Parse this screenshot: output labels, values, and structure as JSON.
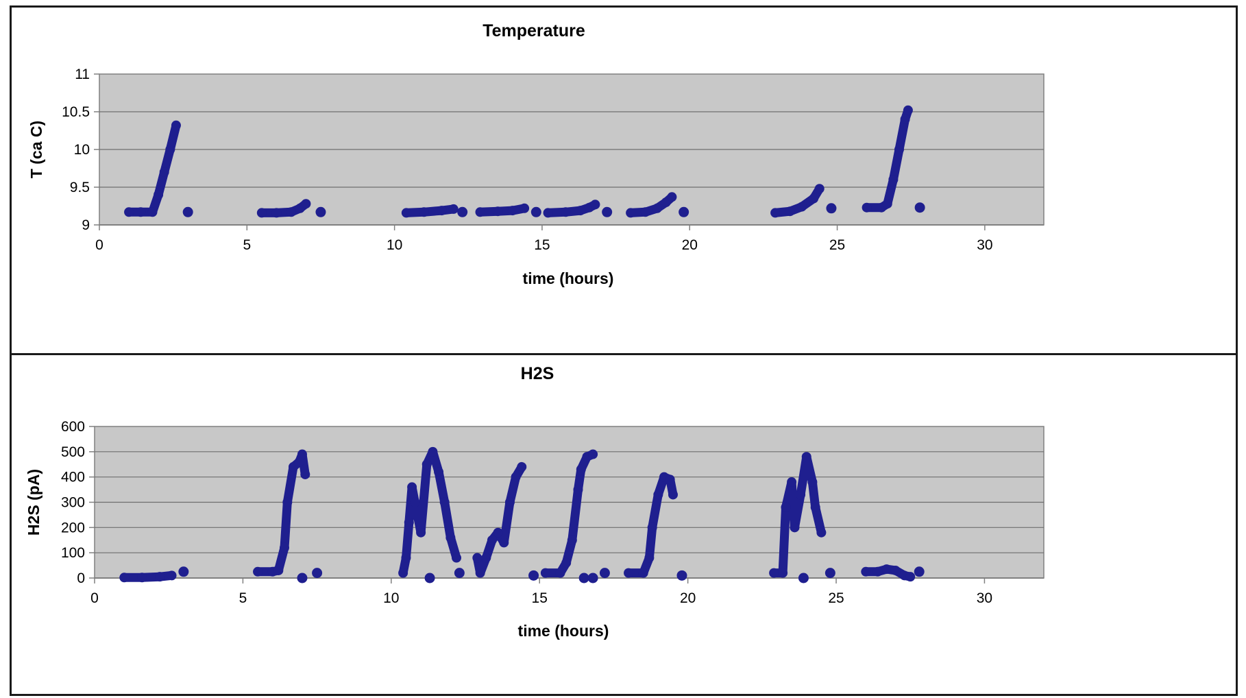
{
  "chart_data": [
    {
      "type": "scatter",
      "title": "Temperature",
      "xlabel": "time (hours)",
      "ylabel": "T (ca C)",
      "xlim": [
        0,
        32
      ],
      "ylim": [
        9,
        11
      ],
      "xticks": [
        0,
        5,
        10,
        15,
        20,
        25,
        30
      ],
      "yticks": [
        9,
        9.5,
        10,
        10.5,
        11
      ],
      "ytick_labels": [
        "9",
        "9.5",
        "10",
        "10.5",
        "11"
      ],
      "grid": true,
      "plot_bg": "#c8c8c8",
      "marker_color": "#1f1f8f",
      "segments": [
        [
          [
            1.0,
            9.17
          ],
          [
            1.4,
            9.17
          ],
          [
            1.8,
            9.17
          ],
          [
            2.0,
            9.4
          ],
          [
            2.2,
            9.7
          ],
          [
            2.4,
            10.0
          ],
          [
            2.6,
            10.32
          ]
        ],
        [
          [
            5.5,
            9.16
          ],
          [
            6.0,
            9.16
          ],
          [
            6.5,
            9.17
          ],
          [
            6.8,
            9.22
          ],
          [
            7.0,
            9.28
          ]
        ],
        [
          [
            10.4,
            9.16
          ],
          [
            11.0,
            9.17
          ],
          [
            11.6,
            9.19
          ],
          [
            12.0,
            9.21
          ]
        ],
        [
          [
            12.9,
            9.17
          ],
          [
            13.5,
            9.18
          ],
          [
            14.0,
            9.19
          ],
          [
            14.4,
            9.22
          ]
        ],
        [
          [
            15.2,
            9.16
          ],
          [
            15.8,
            9.17
          ],
          [
            16.3,
            9.19
          ],
          [
            16.6,
            9.23
          ],
          [
            16.8,
            9.27
          ]
        ],
        [
          [
            18.0,
            9.16
          ],
          [
            18.5,
            9.17
          ],
          [
            18.9,
            9.22
          ],
          [
            19.2,
            9.3
          ],
          [
            19.4,
            9.37
          ]
        ],
        [
          [
            22.9,
            9.16
          ],
          [
            23.4,
            9.18
          ],
          [
            23.8,
            9.24
          ],
          [
            24.2,
            9.35
          ],
          [
            24.4,
            9.48
          ]
        ],
        [
          [
            26.0,
            9.23
          ],
          [
            26.5,
            9.23
          ],
          [
            26.7,
            9.28
          ],
          [
            26.9,
            9.6
          ],
          [
            27.1,
            10.0
          ],
          [
            27.3,
            10.4
          ],
          [
            27.4,
            10.52
          ]
        ]
      ],
      "points": [
        [
          3.0,
          9.17
        ],
        [
          7.5,
          9.17
        ],
        [
          12.3,
          9.17
        ],
        [
          14.8,
          9.17
        ],
        [
          17.2,
          9.17
        ],
        [
          19.8,
          9.17
        ],
        [
          24.8,
          9.22
        ],
        [
          27.8,
          9.23
        ]
      ]
    },
    {
      "type": "scatter",
      "title": "H2S",
      "xlabel": "time (hours)",
      "ylabel": "H2S (pA)",
      "xlim": [
        0,
        32
      ],
      "ylim": [
        0,
        600
      ],
      "xticks": [
        0,
        5,
        10,
        15,
        20,
        25,
        30
      ],
      "yticks": [
        0,
        100,
        200,
        300,
        400,
        500,
        600
      ],
      "ytick_labels": [
        "0",
        "100",
        "200",
        "300",
        "400",
        "500",
        "600"
      ],
      "grid": true,
      "plot_bg": "#c8c8c8",
      "marker_color": "#1f1f8f",
      "segments": [
        [
          [
            1.0,
            2
          ],
          [
            1.6,
            2
          ],
          [
            2.2,
            5
          ],
          [
            2.6,
            10
          ]
        ],
        [
          [
            5.5,
            25
          ],
          [
            6.0,
            25
          ],
          [
            6.2,
            30
          ],
          [
            6.4,
            120
          ],
          [
            6.5,
            300
          ],
          [
            6.7,
            440
          ],
          [
            6.9,
            460
          ],
          [
            7.0,
            490
          ],
          [
            7.1,
            410
          ]
        ],
        [
          [
            10.4,
            20
          ],
          [
            10.5,
            80
          ],
          [
            10.6,
            220
          ],
          [
            10.7,
            360
          ],
          [
            10.8,
            300
          ],
          [
            11.0,
            180
          ],
          [
            11.2,
            450
          ],
          [
            11.4,
            500
          ],
          [
            11.6,
            420
          ],
          [
            11.8,
            300
          ],
          [
            12.0,
            160
          ],
          [
            12.2,
            80
          ]
        ],
        [
          [
            12.9,
            80
          ],
          [
            13.0,
            20
          ],
          [
            13.2,
            80
          ],
          [
            13.4,
            150
          ],
          [
            13.6,
            180
          ],
          [
            13.8,
            140
          ],
          [
            14.0,
            300
          ],
          [
            14.2,
            400
          ],
          [
            14.4,
            440
          ]
        ],
        [
          [
            15.2,
            20
          ],
          [
            15.7,
            20
          ],
          [
            15.9,
            60
          ],
          [
            16.1,
            150
          ],
          [
            16.3,
            350
          ],
          [
            16.4,
            430
          ],
          [
            16.6,
            480
          ],
          [
            16.8,
            490
          ]
        ],
        [
          [
            18.0,
            20
          ],
          [
            18.5,
            20
          ],
          [
            18.7,
            80
          ],
          [
            18.8,
            200
          ],
          [
            19.0,
            330
          ],
          [
            19.2,
            400
          ],
          [
            19.4,
            390
          ],
          [
            19.5,
            330
          ]
        ],
        [
          [
            22.9,
            20
          ],
          [
            23.2,
            20
          ],
          [
            23.3,
            280
          ],
          [
            23.5,
            380
          ],
          [
            23.6,
            200
          ],
          [
            23.8,
            330
          ],
          [
            24.0,
            480
          ],
          [
            24.2,
            380
          ],
          [
            24.3,
            280
          ],
          [
            24.5,
            180
          ]
        ],
        [
          [
            26.0,
            25
          ],
          [
            26.4,
            25
          ],
          [
            26.7,
            35
          ],
          [
            27.0,
            30
          ],
          [
            27.3,
            10
          ],
          [
            27.5,
            5
          ]
        ]
      ],
      "points": [
        [
          3.0,
          25
        ],
        [
          7.0,
          0
        ],
        [
          7.5,
          20
        ],
        [
          11.3,
          0
        ],
        [
          12.3,
          20
        ],
        [
          14.8,
          10
        ],
        [
          16.5,
          0
        ],
        [
          16.8,
          0
        ],
        [
          17.2,
          20
        ],
        [
          19.8,
          10
        ],
        [
          23.9,
          0
        ],
        [
          24.8,
          20
        ],
        [
          27.8,
          25
        ]
      ]
    }
  ]
}
